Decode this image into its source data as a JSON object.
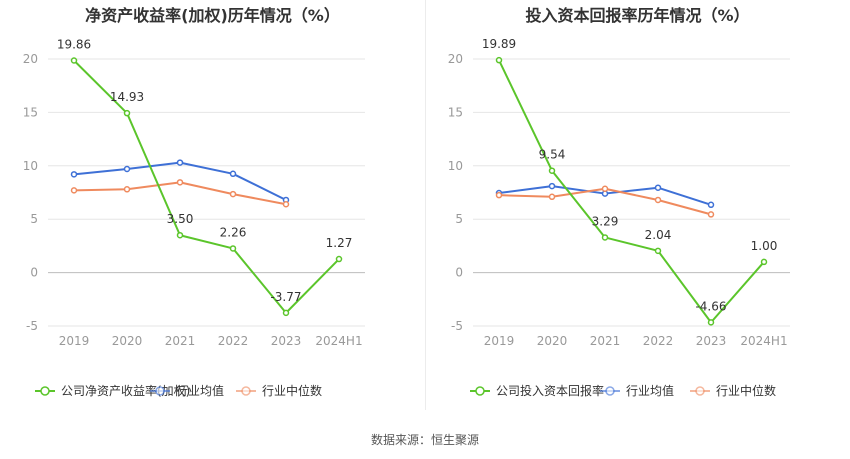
{
  "source": "数据来源：恒生聚源",
  "colors": {
    "company": "#5bc52b",
    "avg": "#3e70d6",
    "median": "#ef8a5e",
    "grid": "#e6e6e6",
    "axis": "#999999"
  },
  "chart_data": [
    {
      "type": "line",
      "title": "净资产收益率(加权)历年情况（%）",
      "categories": [
        "2019",
        "2020",
        "2021",
        "2022",
        "2023",
        "2024H1"
      ],
      "ylim": [
        -5,
        20
      ],
      "yticks": [
        "20",
        "15",
        "10",
        "5",
        "0",
        "-5"
      ],
      "grid": true,
      "legend_position": "bottom",
      "series": [
        {
          "name": "公司净资产收益率(加权)",
          "values": [
            19.86,
            14.93,
            3.5,
            2.26,
            -3.77,
            1.27
          ],
          "labels": [
            "19.86",
            "14.93",
            "3.50",
            "2.26",
            "-3.77",
            "1.27"
          ]
        },
        {
          "name": "行业均值",
          "values": [
            9.2,
            9.7,
            10.3,
            9.25,
            6.8,
            null
          ]
        },
        {
          "name": "行业中位数",
          "values": [
            7.7,
            7.8,
            8.45,
            7.35,
            6.4,
            null
          ]
        }
      ]
    },
    {
      "type": "line",
      "title": "投入资本回报率历年情况（%）",
      "categories": [
        "2019",
        "2020",
        "2021",
        "2022",
        "2023",
        "2024H1"
      ],
      "ylim": [
        -5,
        20
      ],
      "yticks": [
        "20",
        "15",
        "10",
        "5",
        "0",
        "-5"
      ],
      "grid": true,
      "legend_position": "bottom",
      "series": [
        {
          "name": "公司投入资本回报率",
          "values": [
            19.89,
            9.54,
            3.29,
            2.04,
            -4.66,
            1.0
          ],
          "labels": [
            "19.89",
            "9.54",
            "3.29",
            "2.04",
            "-4.66",
            "1.00"
          ]
        },
        {
          "name": "行业均值",
          "values": [
            7.45,
            8.1,
            7.4,
            7.95,
            6.35,
            null
          ]
        },
        {
          "name": "行业中位数",
          "values": [
            7.25,
            7.1,
            7.85,
            6.8,
            5.45,
            null
          ]
        }
      ]
    }
  ]
}
